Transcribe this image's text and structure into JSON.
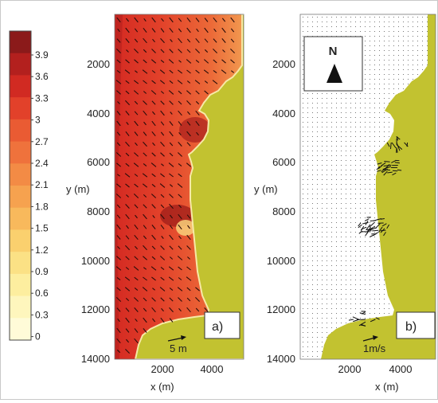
{
  "colorbar": {
    "ticks": [
      "3.9",
      "3.6",
      "3.3",
      "3",
      "2.7",
      "2.4",
      "2.1",
      "1.8",
      "1.5",
      "1.2",
      "0.9",
      "0.6",
      "0.3",
      "0"
    ],
    "colors": [
      "#8b1a1a",
      "#b3201e",
      "#d12a22",
      "#e2412a",
      "#ea5b33",
      "#ef723c",
      "#f38b45",
      "#f6a24f",
      "#f8b95c",
      "#fad06e",
      "#fbe185",
      "#fdee9f",
      "#fef6bd",
      "#fffbd8"
    ]
  },
  "panel_a": {
    "label": "a)",
    "scale_label": "5 m",
    "y_axis_label": "y (m)",
    "x_axis_label": "x (m)",
    "y_ticks": [
      "2000",
      "4000",
      "6000",
      "8000",
      "10000",
      "12000",
      "14000"
    ],
    "x_ticks": [
      "2000",
      "4000"
    ]
  },
  "panel_b": {
    "label": "b)",
    "scale_label": "1m/s",
    "north_label": "N",
    "y_axis_label": "y (m)",
    "x_axis_label": "x (m)",
    "y_ticks": [
      "2000",
      "4000",
      "6000",
      "8000",
      "10000",
      "12000",
      "14000"
    ],
    "x_ticks": [
      "2000",
      "4000"
    ]
  },
  "colors": {
    "land": "#c2c230",
    "sea_b": "#ffffff",
    "arrow": "#111111"
  }
}
